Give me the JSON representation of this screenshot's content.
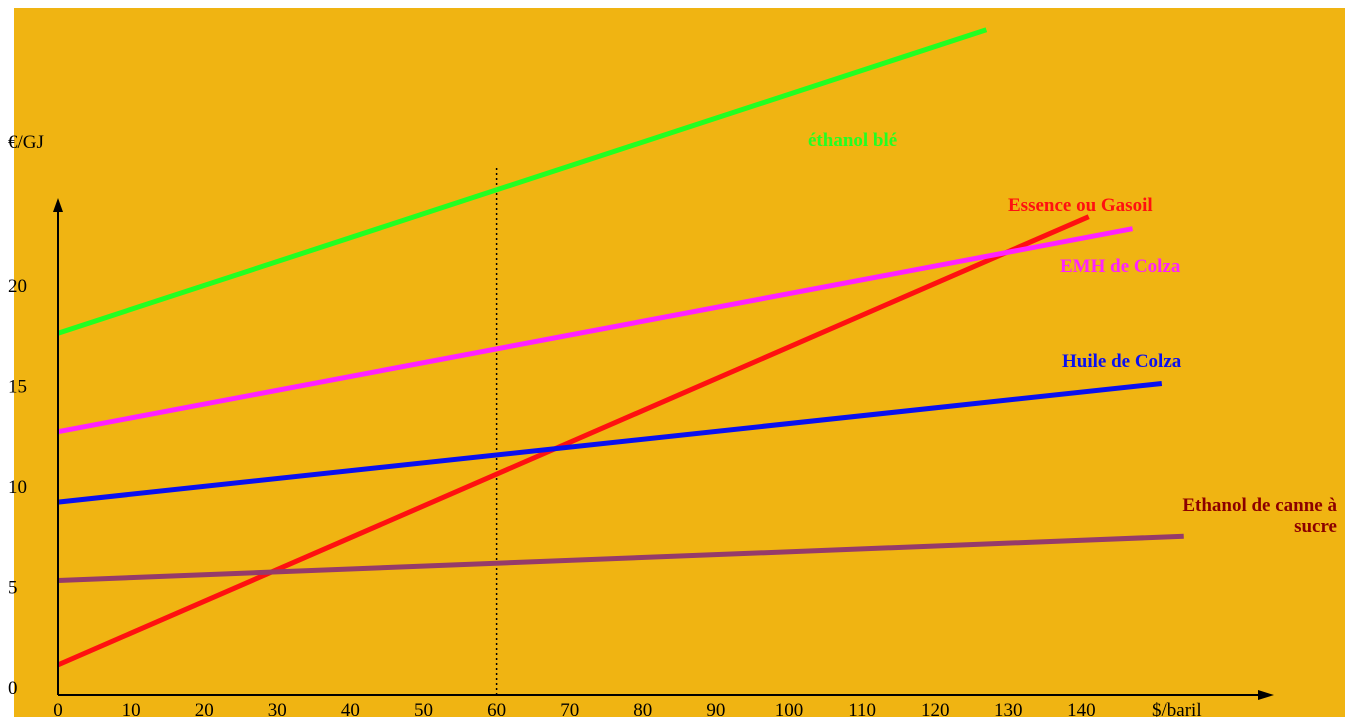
{
  "chart_data": {
    "type": "line",
    "ylabel": "€/GJ",
    "xlabel": "$/baril",
    "xlim": [
      0,
      145
    ],
    "ylim": [
      0,
      24
    ],
    "x_ticks": [
      "0",
      "10",
      "20",
      "30",
      "40",
      "50",
      "60",
      "70",
      "80",
      "90",
      "100",
      "110",
      "120",
      "130",
      "140"
    ],
    "y_ticks": [
      "0",
      "5",
      "10",
      "15",
      "20"
    ],
    "x_tick_values": [
      0,
      10,
      20,
      30,
      40,
      50,
      60,
      70,
      80,
      90,
      100,
      110,
      120,
      130,
      140
    ],
    "y_tick_values": [
      0,
      5,
      10,
      15,
      20
    ],
    "reference_line": {
      "x": 60,
      "style": "dotted"
    },
    "background_color": "#F0B412",
    "series": [
      {
        "name": "éthanol blé",
        "color": "#22FF22",
        "x": [
          0,
          127
        ],
        "y": [
          17.6,
          32.7
        ]
      },
      {
        "name": "Essence ou Gasoil",
        "color": "#FF1010",
        "x": [
          0,
          141
        ],
        "y": [
          1.1,
          23.4
        ]
      },
      {
        "name": "EMH de Colza",
        "color": "#FF22FF",
        "x": [
          0,
          147
        ],
        "y": [
          12.7,
          22.8
        ]
      },
      {
        "name": "Huile de Colza",
        "color": "#0A10F0",
        "x": [
          0,
          151
        ],
        "y": [
          9.2,
          15.1
        ]
      },
      {
        "name": "Ethanol de canne à sucre",
        "color": "#953B6A",
        "x": [
          0,
          154
        ],
        "y": [
          5.3,
          7.5
        ]
      }
    ],
    "series_label_lines": [
      [
        "éthanol blé"
      ],
      [
        "Essence ou Gasoil"
      ],
      [
        "EMH de Colza"
      ],
      [
        "Huile de Colza"
      ],
      [
        "Ethanol de canne à",
        "sucre"
      ]
    ],
    "label_colors": [
      "#22FF22",
      "#FF1010",
      "#FF22FF",
      "#0A10F0",
      "#8B0000"
    ]
  }
}
